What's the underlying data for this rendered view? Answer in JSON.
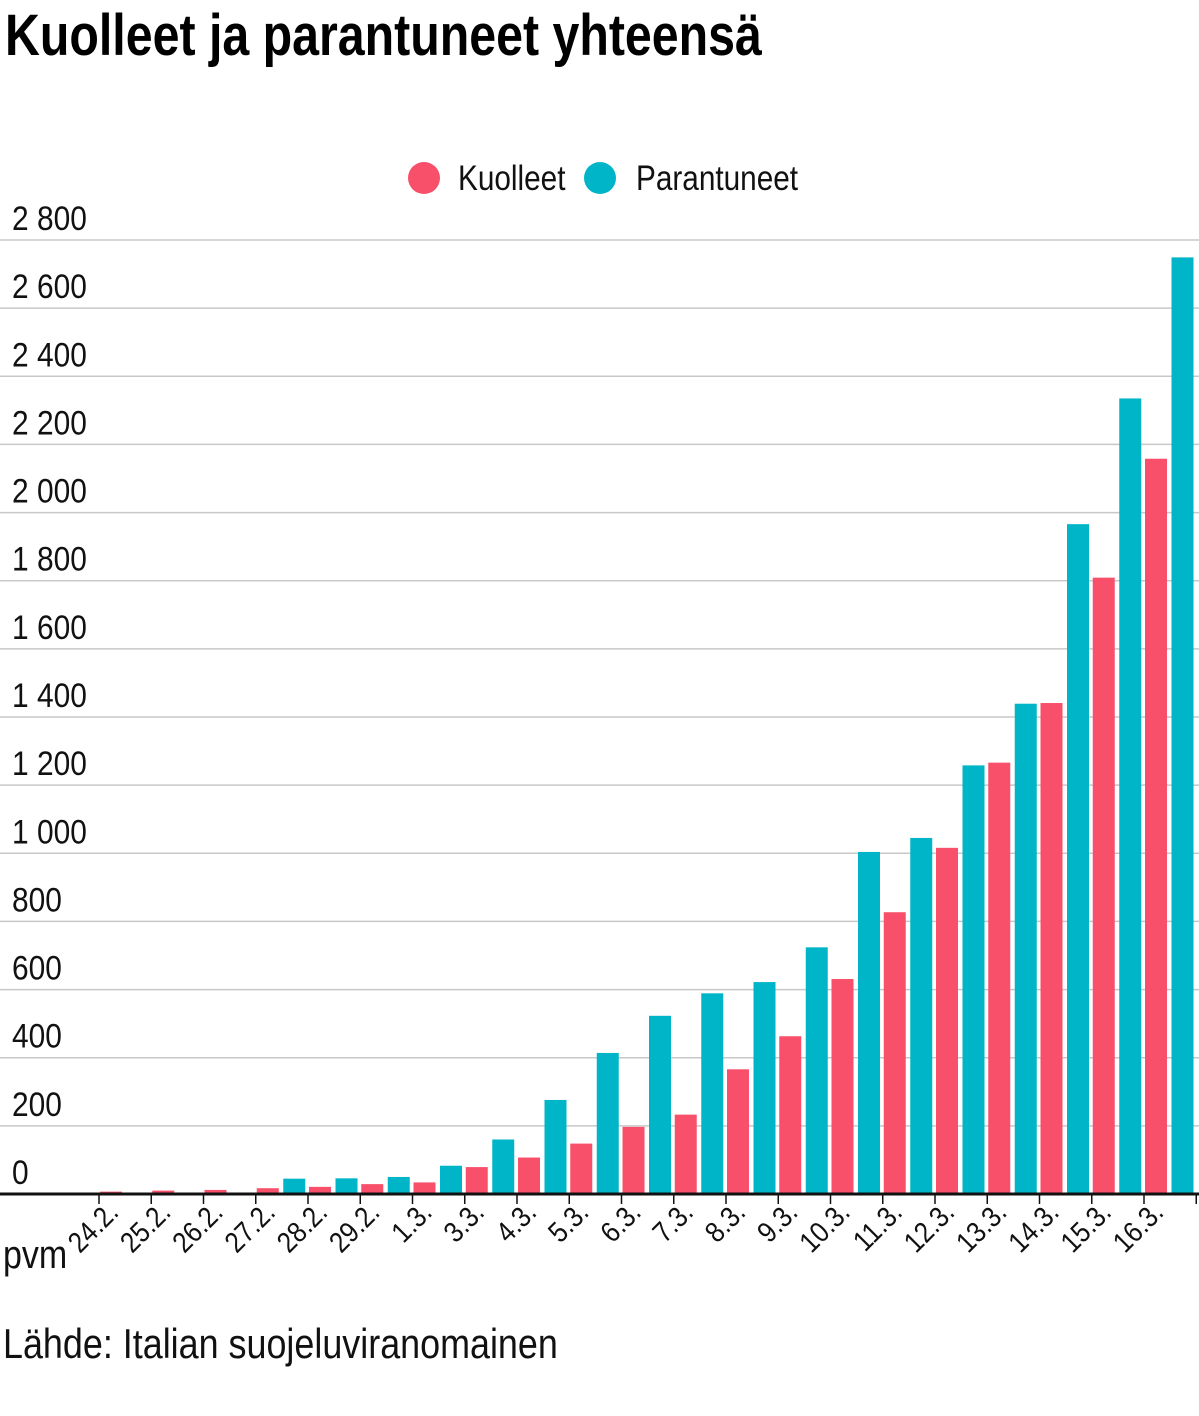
{
  "chart_data": {
    "type": "bar",
    "title": "Kuolleet ja parantuneet yhteensä",
    "xlabel": "pvm",
    "ylabel": "",
    "categories": [
      "24.2.",
      "25.2.",
      "26.2.",
      "27.2.",
      "28.2.",
      "29.2.",
      "1.3.",
      "3.3.",
      "4.3.",
      "5.3.",
      "6.3.",
      "7.3.",
      "8.3.",
      "9.3.",
      "10.3.",
      "11.3.",
      "12.3.",
      "13.3.",
      "14.3.",
      "15.3.",
      "16.3."
    ],
    "series": [
      {
        "name": "Kuolleet",
        "color": "#f8506a",
        "values": [
          7,
          10,
          12,
          17,
          21,
          29,
          34,
          79,
          107,
          148,
          197,
          233,
          366,
          463,
          631,
          827,
          1016,
          1266,
          1441,
          1809,
          2158
        ]
      },
      {
        "name": "Parantuneet",
        "color": "#00b5c7",
        "values": [
          1,
          1,
          3,
          45,
          46,
          50,
          83,
          160,
          276,
          414,
          523,
          589,
          622,
          724,
          1004,
          1045,
          1258,
          1439,
          1966,
          2335,
          2749
        ]
      }
    ],
    "ylim": [
      0,
      2800
    ],
    "y_ticks": [
      0,
      200,
      400,
      600,
      800,
      1000,
      1200,
      1400,
      1600,
      1800,
      2000,
      2200,
      2400,
      2600,
      2800
    ],
    "y_tick_labels": [
      "0",
      "200",
      "400",
      "600",
      "800",
      "1 000",
      "1 200",
      "1 400",
      "1 600",
      "1 800",
      "2 000",
      "2 200",
      "2 400",
      "2 600",
      "2 800"
    ],
    "grid": true,
    "legend_position": "top-center",
    "source": "Lähde: Italian suojeluviranomainen"
  }
}
